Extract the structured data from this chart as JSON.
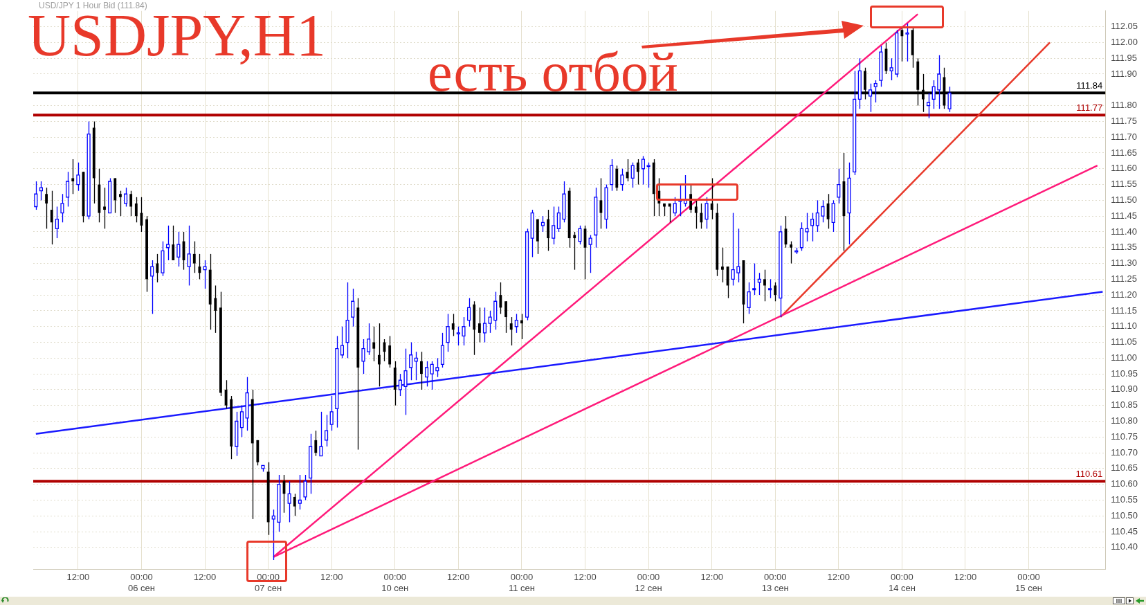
{
  "chart_data": {
    "type": "candlestick",
    "title": "USDJPY,H1",
    "subtitle": "USD/JPY 1 Hour Bid (111.84)",
    "annotations": [
      "есть отбой"
    ],
    "categories": [
      null,
      null,
      null,
      null,
      null,
      null,
      null,
      null,
      "12:00",
      null,
      null,
      null,
      null,
      null,
      null,
      null,
      null,
      null,
      null,
      null,
      "00:00 06 сен",
      null,
      null,
      null,
      null,
      null,
      null,
      null,
      null,
      null,
      null,
      null,
      "12:00",
      null,
      null,
      null,
      null,
      null,
      null,
      null,
      null,
      null,
      null,
      null,
      "00:00 07 сен",
      null,
      null,
      null,
      null,
      null,
      null,
      null,
      null,
      null,
      null,
      null,
      "12:00",
      null,
      null,
      null,
      null,
      null,
      null,
      null,
      null,
      null,
      null,
      null,
      "00:00 10 сен",
      null,
      null,
      null,
      null,
      null,
      null,
      null,
      null,
      null,
      null,
      null,
      "12:00",
      null,
      null,
      null,
      null,
      null,
      null,
      null,
      null,
      null,
      null,
      null,
      "00:00 11 сен",
      null,
      null,
      null,
      null,
      null,
      null,
      null,
      null,
      null,
      null,
      null,
      "12:00",
      null,
      null,
      null,
      null,
      null,
      null,
      null,
      null,
      null,
      null,
      null,
      "00:00 12 сен",
      null,
      null,
      null,
      null,
      null,
      null,
      null,
      null,
      null,
      null,
      null,
      "12:00",
      null,
      null,
      null,
      null,
      null,
      null,
      null,
      null,
      null,
      null,
      null,
      "00:00 13 сен",
      null,
      null,
      null,
      null,
      null,
      null,
      null,
      null,
      null,
      null,
      null,
      "12:00",
      null,
      null,
      null,
      null,
      null,
      null,
      null,
      null,
      null,
      null,
      null,
      "00:00 14 сен",
      null,
      null,
      null,
      null,
      null,
      null,
      null,
      null,
      null,
      null,
      null,
      "12:00",
      null,
      null,
      null,
      null,
      null,
      null,
      null,
      null,
      null,
      null,
      null,
      "00:00 15 сен",
      null,
      null,
      null,
      null,
      null,
      null,
      null,
      null,
      null,
      null,
      null,
      null,
      null,
      null
    ],
    "ohlc": [
      [
        111.48,
        111.56,
        111.47,
        111.52
      ],
      [
        111.53,
        111.56,
        111.5,
        111.54
      ],
      [
        111.52,
        111.54,
        111.41,
        111.49
      ],
      [
        111.47,
        111.53,
        111.36,
        111.43
      ],
      [
        111.41,
        111.48,
        111.38,
        111.44
      ],
      [
        111.46,
        111.52,
        111.43,
        111.49
      ],
      [
        111.51,
        111.59,
        111.48,
        111.56
      ],
      [
        111.57,
        111.63,
        111.52,
        111.56
      ],
      [
        111.55,
        111.62,
        111.53,
        111.58
      ],
      [
        111.59,
        111.59,
        111.43,
        111.45
      ],
      [
        111.45,
        111.75,
        111.44,
        111.71
      ],
      [
        111.73,
        111.75,
        111.49,
        111.57
      ],
      [
        111.55,
        111.6,
        111.43,
        111.46
      ],
      [
        111.48,
        111.54,
        111.41,
        111.47
      ],
      [
        111.46,
        111.57,
        111.46,
        111.56
      ],
      [
        111.57,
        111.57,
        111.46,
        111.5
      ],
      [
        111.52,
        111.53,
        111.45,
        111.51
      ],
      [
        111.49,
        111.54,
        111.48,
        111.52
      ],
      [
        111.52,
        111.53,
        111.45,
        111.48
      ],
      [
        111.49,
        111.51,
        111.43,
        111.45
      ],
      [
        111.46,
        111.51,
        111.4,
        111.42
      ],
      [
        111.44,
        111.45,
        111.21,
        111.25
      ],
      [
        111.26,
        111.31,
        111.14,
        111.29
      ],
      [
        111.3,
        111.33,
        111.24,
        111.27
      ],
      [
        111.27,
        111.37,
        111.26,
        111.34
      ],
      [
        111.35,
        111.42,
        111.31,
        111.36
      ],
      [
        111.36,
        111.42,
        111.31,
        111.31
      ],
      [
        111.32,
        111.4,
        111.29,
        111.36
      ],
      [
        111.37,
        111.4,
        111.28,
        111.31
      ],
      [
        111.29,
        111.42,
        111.23,
        111.33
      ],
      [
        111.33,
        111.37,
        111.27,
        111.3
      ],
      [
        111.29,
        111.33,
        111.25,
        111.27
      ],
      [
        111.28,
        111.31,
        111.22,
        111.29
      ],
      [
        111.28,
        111.33,
        111.09,
        111.17
      ],
      [
        111.19,
        111.23,
        111.08,
        111.15
      ],
      [
        111.16,
        111.21,
        110.88,
        110.89
      ],
      [
        110.9,
        110.93,
        110.84,
        110.85
      ],
      [
        110.87,
        110.88,
        110.68,
        110.72
      ],
      [
        110.72,
        110.83,
        110.69,
        110.8
      ],
      [
        110.78,
        110.85,
        110.75,
        110.83
      ],
      [
        110.81,
        110.94,
        110.77,
        110.89
      ],
      [
        110.87,
        110.9,
        110.49,
        110.73
      ],
      [
        110.74,
        110.74,
        110.66,
        110.67
      ],
      [
        110.65,
        110.66,
        110.64,
        110.66
      ],
      [
        110.64,
        110.67,
        110.44,
        110.48
      ],
      [
        110.49,
        110.52,
        110.36,
        110.5
      ],
      [
        110.48,
        110.63,
        110.45,
        110.6
      ],
      [
        110.61,
        110.63,
        110.51,
        110.57
      ],
      [
        110.54,
        110.61,
        110.48,
        110.57
      ],
      [
        110.56,
        110.57,
        110.5,
        110.53
      ],
      [
        110.54,
        110.63,
        110.52,
        110.55
      ],
      [
        110.56,
        110.63,
        110.55,
        110.61
      ],
      [
        110.62,
        110.76,
        110.57,
        110.72
      ],
      [
        110.74,
        110.77,
        110.69,
        110.7
      ],
      [
        110.69,
        110.83,
        110.69,
        110.72
      ],
      [
        110.74,
        110.82,
        110.72,
        110.77
      ],
      [
        110.79,
        110.88,
        110.77,
        110.83
      ],
      [
        110.84,
        111.07,
        110.78,
        111.03
      ],
      [
        111.01,
        111.1,
        111.0,
        111.04
      ],
      [
        111.05,
        111.24,
        111.0,
        111.12
      ],
      [
        111.13,
        111.22,
        111.1,
        111.18
      ],
      [
        111.16,
        111.19,
        110.71,
        110.97
      ],
      [
        110.99,
        111.06,
        110.95,
        111.03
      ],
      [
        111.02,
        111.11,
        111.01,
        111.06
      ],
      [
        111.05,
        111.1,
        110.99,
        111.03
      ],
      [
        111.01,
        111.11,
        110.91,
        110.98
      ],
      [
        111.05,
        111.06,
        110.99,
        111.02
      ],
      [
        111.04,
        111.07,
        110.97,
        110.98
      ],
      [
        110.97,
        110.99,
        110.85,
        110.9
      ],
      [
        110.9,
        110.95,
        110.88,
        110.93
      ],
      [
        110.91,
        111.03,
        110.82,
        110.96
      ],
      [
        110.97,
        111.05,
        110.93,
        111.01
      ],
      [
        110.99,
        111.02,
        110.93,
        111.0
      ],
      [
        110.99,
        111.02,
        110.9,
        110.95
      ],
      [
        110.94,
        110.99,
        110.91,
        110.97
      ],
      [
        110.95,
        110.99,
        110.9,
        110.98
      ],
      [
        110.96,
        111.0,
        110.94,
        110.97
      ],
      [
        110.98,
        111.08,
        110.97,
        111.04
      ],
      [
        111.05,
        111.14,
        111.02,
        111.1
      ],
      [
        111.11,
        111.14,
        111.07,
        111.09
      ],
      [
        111.08,
        111.1,
        111.04,
        111.08
      ],
      [
        111.07,
        111.13,
        111.04,
        111.1
      ],
      [
        111.12,
        111.19,
        111.1,
        111.16
      ],
      [
        111.17,
        111.18,
        111.01,
        111.09
      ],
      [
        111.11,
        111.16,
        111.05,
        111.08
      ],
      [
        111.08,
        111.16,
        111.05,
        111.11
      ],
      [
        111.11,
        111.15,
        111.08,
        111.13
      ],
      [
        111.12,
        111.21,
        111.09,
        111.18
      ],
      [
        111.2,
        111.24,
        111.14,
        111.16
      ],
      [
        111.18,
        111.18,
        111.08,
        111.13
      ],
      [
        111.11,
        111.13,
        111.04,
        111.09
      ],
      [
        111.1,
        111.14,
        111.08,
        111.12
      ],
      [
        111.12,
        111.14,
        111.06,
        111.11
      ],
      [
        111.13,
        111.41,
        111.12,
        111.4
      ],
      [
        111.38,
        111.47,
        111.32,
        111.46
      ],
      [
        111.44,
        111.44,
        111.33,
        111.37
      ],
      [
        111.42,
        111.45,
        111.4,
        111.43
      ],
      [
        111.44,
        111.47,
        111.34,
        111.38
      ],
      [
        111.38,
        111.48,
        111.36,
        111.42
      ],
      [
        111.41,
        111.48,
        111.4,
        111.46
      ],
      [
        111.44,
        111.56,
        111.43,
        111.52
      ],
      [
        111.53,
        111.54,
        111.35,
        111.38
      ],
      [
        111.39,
        111.4,
        111.28,
        111.38
      ],
      [
        111.37,
        111.42,
        111.36,
        111.41
      ],
      [
        111.41,
        111.42,
        111.25,
        111.35
      ],
      [
        111.36,
        111.39,
        111.27,
        111.38
      ],
      [
        111.39,
        111.54,
        111.35,
        111.51
      ],
      [
        111.5,
        111.57,
        111.41,
        111.46
      ],
      [
        111.44,
        111.55,
        111.41,
        111.54
      ],
      [
        111.55,
        111.63,
        111.53,
        111.61
      ],
      [
        111.6,
        111.61,
        111.53,
        111.54
      ],
      [
        111.55,
        111.6,
        111.53,
        111.58
      ],
      [
        111.59,
        111.63,
        111.56,
        111.57
      ],
      [
        111.57,
        111.62,
        111.54,
        111.61
      ],
      [
        111.62,
        111.63,
        111.55,
        111.59
      ],
      [
        111.6,
        111.64,
        111.55,
        111.63
      ],
      [
        111.61,
        111.62,
        111.54,
        111.61
      ],
      [
        111.62,
        111.63,
        111.45,
        111.52
      ],
      [
        111.53,
        111.57,
        111.45,
        111.49
      ],
      [
        111.49,
        111.49,
        111.45,
        111.48
      ],
      [
        111.49,
        111.49,
        111.43,
        111.48
      ],
      [
        111.46,
        111.51,
        111.45,
        111.49
      ],
      [
        111.5,
        111.55,
        111.45,
        111.5
      ],
      [
        111.49,
        111.58,
        111.48,
        111.5
      ],
      [
        111.52,
        111.55,
        111.46,
        111.47
      ],
      [
        111.48,
        111.5,
        111.41,
        111.46
      ],
      [
        111.46,
        111.49,
        111.41,
        111.43
      ],
      [
        111.44,
        111.51,
        111.41,
        111.49
      ],
      [
        111.49,
        111.57,
        111.44,
        111.47
      ],
      [
        111.46,
        111.49,
        111.26,
        111.28
      ],
      [
        111.29,
        111.35,
        111.24,
        111.28
      ],
      [
        111.29,
        111.29,
        111.19,
        111.23
      ],
      [
        111.25,
        111.46,
        111.23,
        111.28
      ],
      [
        111.27,
        111.41,
        111.24,
        111.29
      ],
      [
        111.31,
        111.31,
        111.11,
        111.17
      ],
      [
        111.16,
        111.24,
        111.14,
        111.21
      ],
      [
        111.22,
        111.3,
        111.2,
        111.22
      ],
      [
        111.24,
        111.27,
        111.2,
        111.25
      ],
      [
        111.25,
        111.28,
        111.18,
        111.23
      ],
      [
        111.22,
        111.25,
        111.19,
        111.22
      ],
      [
        111.23,
        111.24,
        111.18,
        111.2
      ],
      [
        111.19,
        111.42,
        111.13,
        111.4
      ],
      [
        111.41,
        111.45,
        111.35,
        111.36
      ],
      [
        111.36,
        111.37,
        111.3,
        111.35
      ],
      [
        111.34,
        111.35,
        111.33,
        111.34
      ],
      [
        111.35,
        111.43,
        111.34,
        111.41
      ],
      [
        111.4,
        111.46,
        111.37,
        111.41
      ],
      [
        111.42,
        111.46,
        111.37,
        111.44
      ],
      [
        111.42,
        111.5,
        111.4,
        111.46
      ],
      [
        111.45,
        111.5,
        111.43,
        111.48
      ],
      [
        111.49,
        111.52,
        111.41,
        111.44
      ],
      [
        111.43,
        111.5,
        111.4,
        111.49
      ],
      [
        111.51,
        111.6,
        111.49,
        111.55
      ],
      [
        111.56,
        111.65,
        111.34,
        111.45
      ],
      [
        111.46,
        111.62,
        111.36,
        111.57
      ],
      [
        111.59,
        111.91,
        111.58,
        111.82
      ],
      [
        111.82,
        111.95,
        111.79,
        111.91
      ],
      [
        111.91,
        111.92,
        111.82,
        111.85
      ],
      [
        111.83,
        111.87,
        111.78,
        111.85
      ],
      [
        111.86,
        111.88,
        111.81,
        111.87
      ],
      [
        111.88,
        111.99,
        111.86,
        111.97
      ],
      [
        111.98,
        112.0,
        111.9,
        111.91
      ],
      [
        111.91,
        111.95,
        111.88,
        111.92
      ],
      [
        111.9,
        112.04,
        111.89,
        112.03
      ],
      [
        112.04,
        112.05,
        111.94,
        112.02
      ],
      [
        112.03,
        112.06,
        111.94,
        112.03
      ],
      [
        112.04,
        112.05,
        111.92,
        111.96
      ],
      [
        111.94,
        111.95,
        111.8,
        111.85
      ],
      [
        111.85,
        111.9,
        111.78,
        111.82
      ],
      [
        111.8,
        111.84,
        111.76,
        111.81
      ],
      [
        111.82,
        111.88,
        111.79,
        111.86
      ],
      [
        111.85,
        111.96,
        111.79,
        111.9
      ],
      [
        111.89,
        111.92,
        111.79,
        111.8
      ],
      [
        111.79,
        111.86,
        111.78,
        111.84
      ],
      null,
      null,
      null,
      null,
      null,
      null,
      null,
      null,
      null,
      null,
      null,
      null,
      null,
      null,
      null,
      null,
      null,
      null,
      null,
      null,
      null,
      null,
      null,
      null,
      null,
      null,
      null,
      null,
      null
    ],
    "series": [
      {
        "type": "line",
        "color": "#1a1aff",
        "values": [
          110.76,
          null,
          null,
          null,
          null,
          null,
          null,
          null,
          null,
          null,
          null,
          null,
          null,
          null,
          null,
          null,
          null,
          null,
          null,
          null,
          null,
          null,
          null,
          null,
          null,
          null,
          null,
          null,
          null,
          null,
          null,
          null,
          null,
          null,
          null,
          null,
          null,
          null,
          null,
          null,
          null,
          null,
          null,
          null,
          null,
          null,
          null,
          null,
          null,
          null,
          null,
          null,
          null,
          null,
          null,
          null,
          null,
          null,
          null,
          null,
          null,
          null,
          null,
          null,
          null,
          null,
          null,
          null,
          null,
          null,
          null,
          null,
          null,
          null,
          null,
          null,
          null,
          null,
          null,
          null,
          null,
          null,
          null,
          null,
          null,
          null,
          null,
          null,
          null,
          null,
          null,
          null,
          null,
          null,
          null,
          null,
          null,
          null,
          null,
          null,
          null,
          null,
          null,
          null,
          null,
          null,
          null,
          null,
          null,
          null,
          null,
          null,
          null,
          null,
          null,
          null,
          null,
          null,
          null,
          null,
          null,
          null,
          null,
          null,
          null,
          null,
          null,
          null,
          null,
          null,
          null,
          null,
          null,
          null,
          null,
          null,
          null,
          null,
          null,
          null,
          null,
          null,
          null,
          null,
          null,
          null,
          null,
          null,
          null,
          null,
          null,
          null,
          null,
          null,
          null,
          null,
          null,
          null,
          null,
          null,
          null,
          null,
          null,
          null,
          null,
          null,
          null,
          null,
          null,
          null,
          null,
          null,
          null,
          null,
          null,
          null,
          null,
          null,
          null,
          null,
          null,
          null,
          null,
          null,
          null,
          null,
          null,
          null,
          null,
          null,
          null,
          null,
          null,
          null,
          null,
          null,
          null,
          null,
          null,
          null,
          null,
          null,
          111.21
        ]
      },
      {
        "type": "line",
        "color": "#ff1a7a",
        "values": [
          null,
          null,
          null,
          null,
          null,
          null,
          null,
          null,
          null,
          null,
          null,
          null,
          null,
          null,
          null,
          null,
          null,
          null,
          null,
          null,
          null,
          null,
          null,
          null,
          null,
          null,
          null,
          null,
          null,
          null,
          null,
          null,
          null,
          null,
          null,
          null,
          null,
          null,
          null,
          null,
          null,
          null,
          null,
          null,
          null,
          110.37,
          null,
          null,
          null,
          null,
          null,
          null,
          null,
          null,
          null,
          null,
          null,
          null,
          null,
          null,
          null,
          null,
          null,
          null,
          null,
          null,
          null,
          null,
          null,
          null,
          null,
          null,
          null,
          null,
          null,
          null,
          null,
          null,
          null,
          null,
          null,
          null,
          null,
          null,
          null,
          null,
          null,
          null,
          null,
          null,
          null,
          null,
          null,
          null,
          null,
          null,
          null,
          null,
          null,
          null,
          null,
          null,
          null,
          null,
          null,
          null,
          null,
          null,
          null,
          null,
          null,
          null,
          null,
          null,
          null,
          null,
          null,
          null,
          null,
          null,
          null,
          null,
          null,
          null,
          null,
          null,
          null,
          null,
          null,
          null,
          null,
          null,
          null,
          null,
          null,
          null,
          null,
          null,
          null,
          null,
          null,
          null,
          null,
          null,
          null,
          null,
          null,
          null,
          null,
          null,
          null,
          null,
          null,
          null,
          null,
          null,
          null,
          null,
          null,
          null,
          null,
          null,
          null,
          null,
          null,
          null,
          null,
          112.09,
          null,
          null,
          null,
          null,
          null,
          null,
          null,
          null,
          null,
          null,
          null,
          null,
          null,
          null,
          null,
          null,
          null,
          null,
          null,
          null,
          null,
          null,
          null,
          null,
          null,
          null,
          null,
          null,
          null,
          null,
          null,
          null,
          null,
          null,
          null
        ]
      },
      {
        "type": "line",
        "color": "#ff1a7a",
        "values": [
          null,
          null,
          null,
          null,
          null,
          null,
          null,
          null,
          null,
          null,
          null,
          null,
          null,
          null,
          null,
          null,
          null,
          null,
          null,
          null,
          null,
          null,
          null,
          null,
          null,
          null,
          null,
          null,
          null,
          null,
          null,
          null,
          null,
          null,
          null,
          null,
          null,
          null,
          null,
          null,
          null,
          null,
          null,
          null,
          null,
          110.37,
          null,
          null,
          null,
          null,
          null,
          null,
          null,
          null,
          null,
          null,
          null,
          null,
          null,
          null,
          null,
          null,
          null,
          null,
          null,
          null,
          null,
          null,
          null,
          null,
          null,
          null,
          null,
          null,
          null,
          null,
          null,
          null,
          null,
          null,
          null,
          null,
          null,
          null,
          null,
          null,
          null,
          null,
          null,
          null,
          null,
          null,
          null,
          null,
          null,
          null,
          null,
          null,
          null,
          null,
          null,
          null,
          null,
          null,
          null,
          null,
          null,
          null,
          null,
          null,
          null,
          null,
          null,
          null,
          null,
          null,
          null,
          null,
          null,
          null,
          null,
          null,
          null,
          null,
          null,
          null,
          null,
          null,
          null,
          null,
          null,
          null,
          null,
          null,
          null,
          null,
          null,
          null,
          null,
          null,
          null,
          null,
          null,
          null,
          null,
          null,
          null,
          null,
          null,
          null,
          null,
          null,
          null,
          null,
          null,
          null,
          null,
          null,
          null,
          null,
          null,
          null,
          null,
          null,
          null,
          null,
          null,
          null,
          null,
          null,
          null,
          null,
          null,
          null,
          null,
          null,
          null,
          null,
          null,
          null,
          null,
          null,
          null,
          null,
          null,
          null,
          null,
          null,
          null,
          null,
          null,
          null,
          null,
          null,
          null,
          null,
          null,
          null,
          null,
          null,
          null,
          111.61,
          null
        ]
      },
      {
        "type": "line",
        "color": "#e8392a",
        "values": [
          null,
          null,
          null,
          null,
          null,
          null,
          null,
          null,
          null,
          null,
          null,
          null,
          null,
          null,
          null,
          null,
          null,
          null,
          null,
          null,
          null,
          null,
          null,
          null,
          null,
          null,
          null,
          null,
          null,
          null,
          null,
          null,
          null,
          null,
          null,
          null,
          null,
          null,
          null,
          null,
          null,
          null,
          null,
          null,
          null,
          null,
          null,
          null,
          null,
          null,
          null,
          null,
          null,
          null,
          null,
          null,
          null,
          null,
          null,
          null,
          null,
          null,
          null,
          null,
          null,
          null,
          null,
          null,
          null,
          null,
          null,
          null,
          null,
          null,
          null,
          null,
          null,
          null,
          null,
          null,
          null,
          null,
          null,
          null,
          null,
          null,
          null,
          null,
          null,
          null,
          null,
          null,
          null,
          null,
          null,
          null,
          null,
          null,
          null,
          null,
          null,
          null,
          null,
          null,
          null,
          null,
          null,
          null,
          null,
          null,
          null,
          null,
          null,
          null,
          null,
          null,
          null,
          null,
          null,
          null,
          null,
          null,
          null,
          null,
          null,
          null,
          null,
          null,
          null,
          null,
          null,
          null,
          null,
          null,
          null,
          null,
          null,
          null,
          null,
          null,
          null,
          111.13,
          null,
          null,
          null,
          null,
          null,
          null,
          null,
          null,
          null,
          null,
          null,
          null,
          null,
          null,
          null,
          null,
          null,
          null,
          null,
          null,
          null,
          null,
          null,
          null,
          null,
          null,
          null,
          null,
          null,
          null,
          null,
          null,
          null,
          null,
          null,
          null,
          null,
          null,
          null,
          null,
          null,
          null,
          null,
          null,
          null,
          null,
          null,
          null,
          null,
          null,
          112.0,
          null,
          null,
          null,
          null,
          null,
          null,
          null,
          null,
          null,
          null
        ]
      }
    ],
    "ylim": [
      110.33,
      112.1
    ],
    "yticks": [
      {
        "value": 110.4,
        "label": "110.40"
      },
      {
        "value": 110.45,
        "label": "110.45"
      },
      {
        "value": 110.5,
        "label": "110.50"
      },
      {
        "value": 110.55,
        "label": "110.55"
      },
      {
        "value": 110.6,
        "label": "110.60"
      },
      {
        "value": 110.65,
        "label": "110.65"
      },
      {
        "value": 110.7,
        "label": "110.70"
      },
      {
        "value": 110.75,
        "label": "110.75"
      },
      {
        "value": 110.8,
        "label": "110.80"
      },
      {
        "value": 110.85,
        "label": "110.85"
      },
      {
        "value": 110.9,
        "label": "110.90"
      },
      {
        "value": 110.95,
        "label": "110.95"
      },
      {
        "value": 111,
        "label": "111.00"
      },
      {
        "value": 111.05,
        "label": "111.05"
      },
      {
        "value": 111.1,
        "label": "111.10"
      },
      {
        "value": 111.15,
        "label": "111.15"
      },
      {
        "value": 111.2,
        "label": "111.20"
      },
      {
        "value": 111.25,
        "label": "111.25"
      },
      {
        "value": 111.3,
        "label": "111.30"
      },
      {
        "value": 111.35,
        "label": "111.35"
      },
      {
        "value": 111.4,
        "label": "111.40"
      },
      {
        "value": 111.45,
        "label": "111.45"
      },
      {
        "value": 111.5,
        "label": "111.50"
      },
      {
        "value": 111.55,
        "label": "111.55"
      },
      {
        "value": 111.6,
        "label": "111.60"
      },
      {
        "value": 111.65,
        "label": "111.65"
      },
      {
        "value": 111.7,
        "label": "111.70"
      },
      {
        "value": 111.75,
        "label": "111.75"
      },
      {
        "value": 111.8,
        "label": "111.80"
      },
      {
        "value": 111.9,
        "label": "111.90"
      },
      {
        "value": 111.95,
        "label": "111.95"
      },
      {
        "value": 112,
        "label": "112.00"
      },
      {
        "value": 112.05,
        "label": "112.05"
      }
    ],
    "ref_lines": [
      {
        "axis": "y",
        "value": 111.77,
        "label": "111.77",
        "color": "#b00000"
      },
      {
        "axis": "y",
        "value": 110.61,
        "label": "110.61",
        "color": "#b00000"
      },
      {
        "axis": "y",
        "value": 111.84,
        "label": "111.84",
        "color": "#000000"
      }
    ],
    "grid": true,
    "legend": false
  }
}
